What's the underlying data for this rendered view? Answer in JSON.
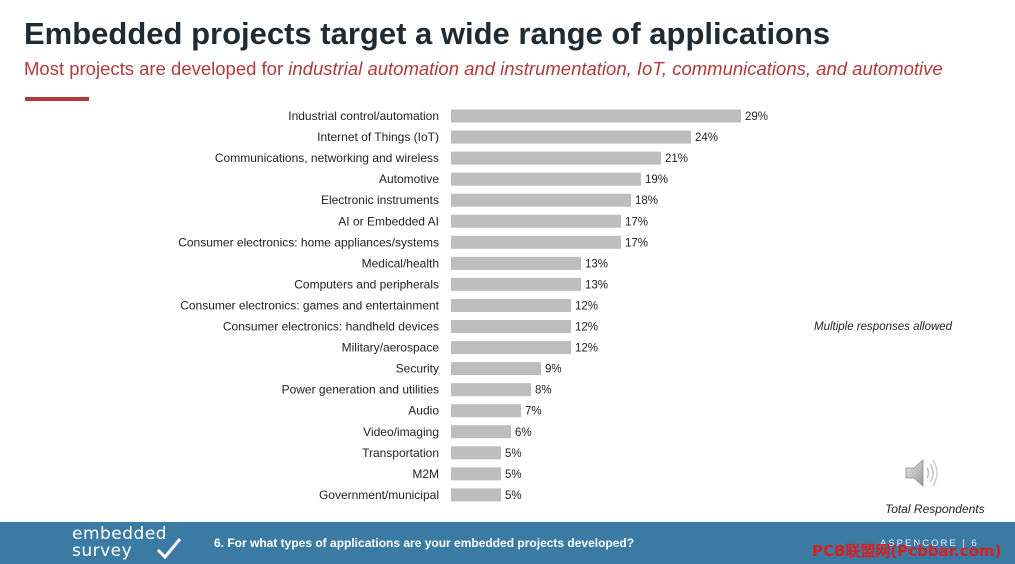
{
  "header": {
    "title": "Embedded projects target a wide range of applications",
    "subtitle_prefix": "Most projects are developed for ",
    "subtitle_emphasis": "industrial automation and instrumentation, IoT, communications, and automotive"
  },
  "note": "Multiple responses allowed",
  "total_label": "Total Respondents",
  "footer": {
    "logo_line1": "embedded",
    "logo_line2": "survey",
    "question": "6. For what types of applications are your embedded projects developed?",
    "brand": "ASPENCORE | 6"
  },
  "watermark": "PCB联盟网(Pcbbar.com)",
  "colors": {
    "bar": "#bdbdbd",
    "accent": "#b33a3a",
    "footer": "#3b7aa3"
  },
  "icons": [
    "speaker-icon",
    "checkmark-icon"
  ],
  "chart_data": {
    "type": "bar",
    "orientation": "horizontal",
    "value_suffix": "%",
    "categories": [
      "Industrial control/automation",
      "Internet of Things (IoT)",
      "Communications, networking and wireless",
      "Automotive",
      "Electronic instruments",
      "AI or Embedded AI",
      "Consumer electronics: home appliances/systems",
      "Medical/health",
      "Computers and peripherals",
      "Consumer electronics: games and entertainment",
      "Consumer electronics: handheld devices",
      "Military/aerospace",
      "Security",
      "Power generation and utilities",
      "Audio",
      "Video/imaging",
      "Transportation",
      "M2M",
      "Government/municipal"
    ],
    "values": [
      29,
      24,
      21,
      19,
      18,
      17,
      17,
      13,
      13,
      12,
      12,
      12,
      9,
      8,
      7,
      6,
      5,
      5,
      5
    ],
    "xlim": [
      0,
      30
    ],
    "grid": false,
    "legend": "none"
  }
}
